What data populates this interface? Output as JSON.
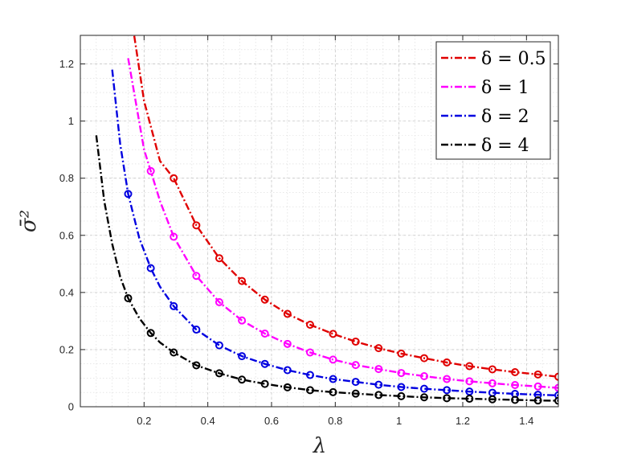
{
  "chart_data": {
    "type": "line",
    "title": "",
    "xlabel": "λ",
    "ylabel": "σ̄²",
    "xlim": [
      0.0,
      1.5
    ],
    "ylim": [
      0.0,
      1.3
    ],
    "xticks": [
      0.2,
      0.4,
      0.6,
      0.8,
      1,
      1.2,
      1.4
    ],
    "xtick_labels": [
      "0.2",
      "0.4",
      "0.6",
      "0.8",
      "1",
      "1.2",
      "1.4"
    ],
    "yticks": [
      0,
      0.2,
      0.4,
      0.6,
      0.8,
      1,
      1.2
    ],
    "ytick_labels": [
      "0",
      "0.2",
      "0.4",
      "0.6",
      "0.8",
      "1",
      "1.2"
    ],
    "grid": true,
    "minor_grid": true,
    "legend_position": "top-right",
    "series": [
      {
        "name": "δ = 0.5",
        "color": "#e00000",
        "x": [
          0.15,
          0.2,
          0.25,
          0.293,
          0.364,
          0.436,
          0.507,
          0.579,
          0.65,
          0.721,
          0.793,
          0.864,
          0.936,
          1.007,
          1.079,
          1.15,
          1.221,
          1.293,
          1.364,
          1.436,
          1.5
        ],
        "y": [
          1.44,
          1.07,
          0.86,
          0.8,
          0.635,
          0.52,
          0.44,
          0.375,
          0.325,
          0.287,
          0.255,
          0.228,
          0.205,
          0.186,
          0.17,
          0.155,
          0.142,
          0.131,
          0.121,
          0.113,
          0.105
        ],
        "marker_x": [
          0.293,
          0.364,
          0.436,
          0.507,
          0.579,
          0.65,
          0.721,
          0.793,
          0.864,
          0.936,
          1.007,
          1.079,
          1.15,
          1.221,
          1.293,
          1.364,
          1.436,
          1.5
        ],
        "marker_y": [
          0.8,
          0.635,
          0.52,
          0.44,
          0.375,
          0.325,
          0.287,
          0.255,
          0.228,
          0.205,
          0.186,
          0.17,
          0.155,
          0.142,
          0.131,
          0.121,
          0.113,
          0.105
        ]
      },
      {
        "name": "δ = 1",
        "color": "#ff00ff",
        "x": [
          0.15,
          0.2,
          0.221,
          0.25,
          0.293,
          0.364,
          0.436,
          0.507,
          0.579,
          0.65,
          0.721,
          0.793,
          0.864,
          0.936,
          1.007,
          1.079,
          1.15,
          1.221,
          1.293,
          1.364,
          1.436,
          1.5
        ],
        "y": [
          1.22,
          0.9,
          0.825,
          0.72,
          0.595,
          0.458,
          0.366,
          0.302,
          0.256,
          0.22,
          0.19,
          0.165,
          0.146,
          0.132,
          0.118,
          0.107,
          0.097,
          0.089,
          0.082,
          0.076,
          0.071,
          0.066
        ],
        "marker_x": [
          0.221,
          0.293,
          0.364,
          0.436,
          0.507,
          0.579,
          0.65,
          0.721,
          0.793,
          0.864,
          0.936,
          1.007,
          1.079,
          1.15,
          1.221,
          1.293,
          1.364,
          1.436,
          1.5
        ],
        "marker_y": [
          0.825,
          0.595,
          0.458,
          0.366,
          0.302,
          0.256,
          0.22,
          0.19,
          0.165,
          0.146,
          0.132,
          0.118,
          0.107,
          0.097,
          0.089,
          0.082,
          0.076,
          0.071,
          0.066
        ]
      },
      {
        "name": "δ = 2",
        "color": "#0000e0",
        "x": [
          0.1,
          0.125,
          0.15,
          0.185,
          0.221,
          0.25,
          0.293,
          0.364,
          0.436,
          0.507,
          0.579,
          0.65,
          0.721,
          0.793,
          0.864,
          0.936,
          1.007,
          1.079,
          1.15,
          1.221,
          1.293,
          1.364,
          1.436,
          1.5
        ],
        "y": [
          1.18,
          0.92,
          0.745,
          0.59,
          0.485,
          0.42,
          0.352,
          0.27,
          0.215,
          0.177,
          0.15,
          0.128,
          0.111,
          0.097,
          0.087,
          0.077,
          0.069,
          0.063,
          0.058,
          0.053,
          0.049,
          0.045,
          0.042,
          0.04
        ],
        "marker_x": [
          0.15,
          0.221,
          0.293,
          0.364,
          0.436,
          0.507,
          0.579,
          0.65,
          0.721,
          0.793,
          0.864,
          0.936,
          1.007,
          1.079,
          1.15,
          1.221,
          1.293,
          1.364,
          1.436,
          1.5
        ],
        "marker_y": [
          0.745,
          0.485,
          0.352,
          0.27,
          0.215,
          0.177,
          0.15,
          0.128,
          0.111,
          0.097,
          0.087,
          0.077,
          0.069,
          0.063,
          0.058,
          0.053,
          0.049,
          0.045,
          0.042,
          0.04
        ]
      },
      {
        "name": "δ = 4",
        "color": "#000000",
        "x": [
          0.05,
          0.075,
          0.1,
          0.125,
          0.15,
          0.185,
          0.221,
          0.25,
          0.293,
          0.364,
          0.436,
          0.507,
          0.579,
          0.65,
          0.721,
          0.793,
          0.864,
          0.936,
          1.007,
          1.079,
          1.15,
          1.221,
          1.293,
          1.364,
          1.436,
          1.5
        ],
        "y": [
          0.95,
          0.72,
          0.57,
          0.455,
          0.38,
          0.31,
          0.258,
          0.225,
          0.19,
          0.145,
          0.117,
          0.095,
          0.08,
          0.068,
          0.058,
          0.051,
          0.046,
          0.041,
          0.037,
          0.033,
          0.03,
          0.028,
          0.026,
          0.024,
          0.022,
          0.021
        ],
        "marker_x": [
          0.15,
          0.221,
          0.293,
          0.364,
          0.436,
          0.507,
          0.579,
          0.65,
          0.721,
          0.793,
          0.864,
          0.936,
          1.007,
          1.079,
          1.15,
          1.221,
          1.293,
          1.364,
          1.436,
          1.5
        ],
        "marker_y": [
          0.38,
          0.258,
          0.19,
          0.145,
          0.117,
          0.095,
          0.08,
          0.068,
          0.058,
          0.051,
          0.046,
          0.041,
          0.037,
          0.033,
          0.03,
          0.028,
          0.026,
          0.024,
          0.022,
          0.021
        ]
      }
    ]
  }
}
